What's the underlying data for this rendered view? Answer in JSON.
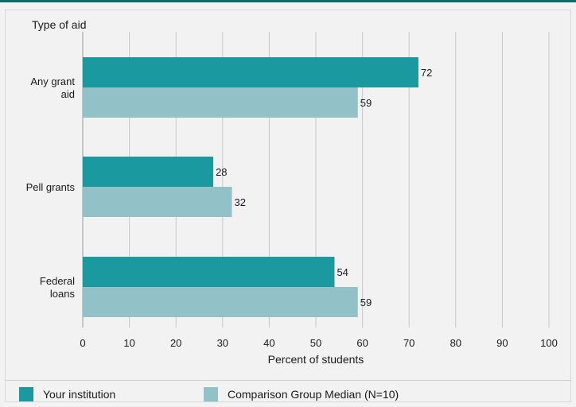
{
  "chart_data": {
    "type": "bar",
    "orientation": "horizontal",
    "title": "Type of aid",
    "xlabel": "Percent of students",
    "categories": [
      "Any grant aid",
      "Pell grants",
      "Federal loans"
    ],
    "series": [
      {
        "name": "Your institution",
        "values": [
          72,
          28,
          54
        ],
        "color": "#1a9a9e"
      },
      {
        "name": "Comparison Group Median (N=10)",
        "values": [
          59,
          32,
          59
        ],
        "color": "#92c2c8"
      }
    ],
    "xlim": [
      0,
      100
    ],
    "xticks": [
      0,
      10,
      20,
      30,
      40,
      50,
      60,
      70,
      80,
      90,
      100
    ],
    "grid": true,
    "legend_position": "bottom"
  }
}
